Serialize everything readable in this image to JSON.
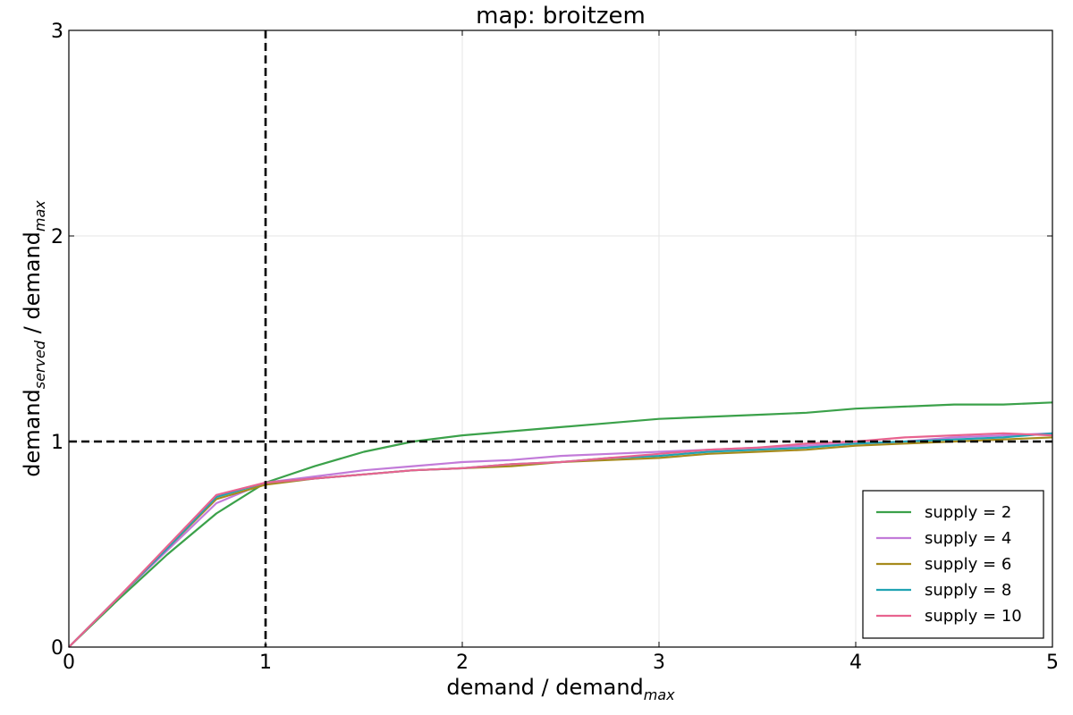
{
  "chart_data": {
    "type": "line",
    "title": "map: broitzem",
    "xlabel": {
      "base": "demand / demand",
      "sub": "max"
    },
    "ylabel": {
      "base": "demand",
      "sub1": "served",
      "mid": " / demand",
      "sub2": "max"
    },
    "xlim": [
      0,
      5
    ],
    "ylim": [
      0,
      3
    ],
    "xticks": [
      "0",
      "1",
      "2",
      "3",
      "4",
      "5"
    ],
    "yticks": [
      "0",
      "1",
      "2",
      "3"
    ],
    "grid": true,
    "legend": "bottom-right",
    "reference_lines": [
      {
        "orientation": "vertical",
        "value": 1,
        "style": "dashed",
        "color": "#000000"
      },
      {
        "orientation": "horizontal",
        "value": 1,
        "style": "dashed",
        "color": "#000000"
      }
    ],
    "series": [
      {
        "name": "supply = 2",
        "color": "#3ba14a",
        "points": [
          [
            0,
            0
          ],
          [
            0.25,
            0.23
          ],
          [
            0.5,
            0.45
          ],
          [
            0.75,
            0.65
          ],
          [
            1.0,
            0.8
          ],
          [
            1.25,
            0.88
          ],
          [
            1.5,
            0.95
          ],
          [
            1.75,
            1.0
          ],
          [
            2.0,
            1.03
          ],
          [
            2.25,
            1.05
          ],
          [
            2.5,
            1.07
          ],
          [
            2.75,
            1.09
          ],
          [
            3.0,
            1.11
          ],
          [
            3.25,
            1.12
          ],
          [
            3.5,
            1.13
          ],
          [
            3.75,
            1.14
          ],
          [
            4.0,
            1.16
          ],
          [
            4.25,
            1.17
          ],
          [
            4.5,
            1.18
          ],
          [
            4.75,
            1.18
          ],
          [
            5.0,
            1.19
          ]
        ]
      },
      {
        "name": "supply = 4",
        "color": "#c27bd9",
        "points": [
          [
            0,
            0
          ],
          [
            0.25,
            0.24
          ],
          [
            0.5,
            0.47
          ],
          [
            0.75,
            0.7
          ],
          [
            1.0,
            0.8
          ],
          [
            1.25,
            0.83
          ],
          [
            1.5,
            0.86
          ],
          [
            1.75,
            0.88
          ],
          [
            2.0,
            0.9
          ],
          [
            2.25,
            0.91
          ],
          [
            2.5,
            0.93
          ],
          [
            2.75,
            0.94
          ],
          [
            3.0,
            0.95
          ],
          [
            3.25,
            0.96
          ],
          [
            3.5,
            0.97
          ],
          [
            3.75,
            0.98
          ],
          [
            4.0,
            0.99
          ],
          [
            4.25,
            1.0
          ],
          [
            4.5,
            1.02
          ],
          [
            4.75,
            1.03
          ],
          [
            5.0,
            1.04
          ]
        ]
      },
      {
        "name": "supply = 6",
        "color": "#a68a1c",
        "points": [
          [
            0,
            0
          ],
          [
            0.25,
            0.24
          ],
          [
            0.5,
            0.48
          ],
          [
            0.75,
            0.72
          ],
          [
            1.0,
            0.79
          ],
          [
            1.25,
            0.82
          ],
          [
            1.5,
            0.84
          ],
          [
            1.75,
            0.86
          ],
          [
            2.0,
            0.87
          ],
          [
            2.25,
            0.88
          ],
          [
            2.5,
            0.9
          ],
          [
            2.75,
            0.91
          ],
          [
            3.0,
            0.92
          ],
          [
            3.25,
            0.94
          ],
          [
            3.5,
            0.95
          ],
          [
            3.75,
            0.96
          ],
          [
            4.0,
            0.98
          ],
          [
            4.25,
            0.99
          ],
          [
            4.5,
            1.0
          ],
          [
            4.75,
            1.01
          ],
          [
            5.0,
            1.02
          ]
        ]
      },
      {
        "name": "supply = 8",
        "color": "#20a3b3",
        "points": [
          [
            0,
            0
          ],
          [
            0.25,
            0.24
          ],
          [
            0.5,
            0.48
          ],
          [
            0.75,
            0.73
          ],
          [
            1.0,
            0.8
          ],
          [
            1.25,
            0.82
          ],
          [
            1.5,
            0.84
          ],
          [
            1.75,
            0.86
          ],
          [
            2.0,
            0.87
          ],
          [
            2.25,
            0.89
          ],
          [
            2.5,
            0.9
          ],
          [
            2.75,
            0.92
          ],
          [
            3.0,
            0.93
          ],
          [
            3.25,
            0.95
          ],
          [
            3.5,
            0.96
          ],
          [
            3.75,
            0.97
          ],
          [
            4.0,
            0.99
          ],
          [
            4.25,
            1.0
          ],
          [
            4.5,
            1.01
          ],
          [
            4.75,
            1.02
          ],
          [
            5.0,
            1.04
          ]
        ]
      },
      {
        "name": "supply = 10",
        "color": "#e8638f",
        "points": [
          [
            0,
            0
          ],
          [
            0.25,
            0.24
          ],
          [
            0.5,
            0.49
          ],
          [
            0.75,
            0.74
          ],
          [
            1.0,
            0.8
          ],
          [
            1.25,
            0.82
          ],
          [
            1.5,
            0.84
          ],
          [
            1.75,
            0.86
          ],
          [
            2.0,
            0.87
          ],
          [
            2.25,
            0.89
          ],
          [
            2.5,
            0.9
          ],
          [
            2.75,
            0.92
          ],
          [
            3.0,
            0.94
          ],
          [
            3.25,
            0.96
          ],
          [
            3.5,
            0.97
          ],
          [
            3.75,
            0.99
          ],
          [
            4.0,
            1.0
          ],
          [
            4.25,
            1.02
          ],
          [
            4.5,
            1.03
          ],
          [
            4.75,
            1.04
          ],
          [
            5.0,
            1.03
          ]
        ]
      }
    ]
  }
}
